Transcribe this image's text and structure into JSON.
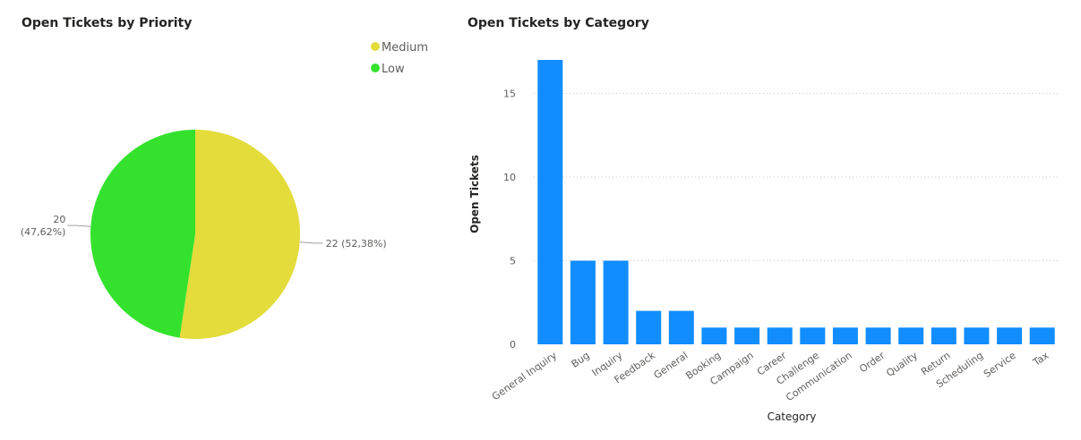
{
  "charts": {
    "priority": {
      "title": "Open Tickets by Priority"
    },
    "category": {
      "title": "Open Tickets by Category"
    }
  },
  "chart_data": [
    {
      "type": "pie",
      "title": "Open Tickets by Priority",
      "legend_position": "top-right",
      "slices": [
        {
          "name": "Medium",
          "value": 22,
          "label": "22 (52,38%)",
          "color": "#E3DC3B"
        },
        {
          "name": "Low",
          "value": 20,
          "label": "20 (47,62%)",
          "color": "#34E22E"
        }
      ]
    },
    {
      "type": "bar",
      "title": "Open Tickets by Category",
      "xlabel": "Category",
      "ylabel": "Open Tickets",
      "ylim": [
        0,
        17
      ],
      "yticks": [
        0,
        5,
        10,
        15
      ],
      "grid": true,
      "color": "#118DFF",
      "categories": [
        "General Inquiry",
        "Bug",
        "Inquiry",
        "Feedback",
        "General",
        "Booking",
        "Campaign",
        "Career",
        "Challenge",
        "Communication",
        "Order",
        "Quality",
        "Return",
        "Scheduling",
        "Service",
        "Tax"
      ],
      "values": [
        17,
        5,
        5,
        2,
        2,
        1,
        1,
        1,
        1,
        1,
        1,
        1,
        1,
        1,
        1,
        1
      ]
    }
  ]
}
